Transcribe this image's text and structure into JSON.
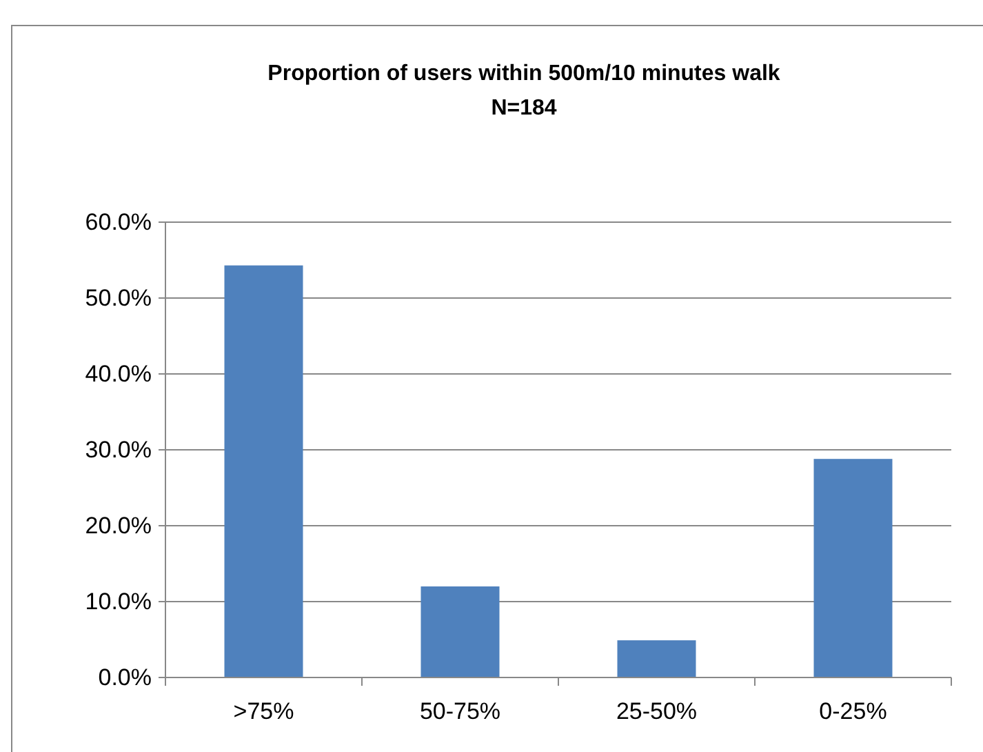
{
  "chart_data": {
    "type": "bar",
    "title": "Proportion of users within 500m/10 minutes walk",
    "subtitle": "N=184",
    "categories": [
      ">75%",
      "50-75%",
      "25-50%",
      "0-25%"
    ],
    "values": [
      54.3,
      12.0,
      4.9,
      28.8
    ],
    "color": "#4f81bd",
    "ylim": [
      0,
      60
    ],
    "yticks": [
      {
        "value": 0,
        "label": "0.0%"
      },
      {
        "value": 10,
        "label": "10.0%"
      },
      {
        "value": 20,
        "label": "20.0%"
      },
      {
        "value": 30,
        "label": "30.0%"
      },
      {
        "value": 40,
        "label": "40.0%"
      },
      {
        "value": 50,
        "label": "50.0%"
      },
      {
        "value": 60,
        "label": "60.0%"
      }
    ],
    "grid": "y"
  }
}
